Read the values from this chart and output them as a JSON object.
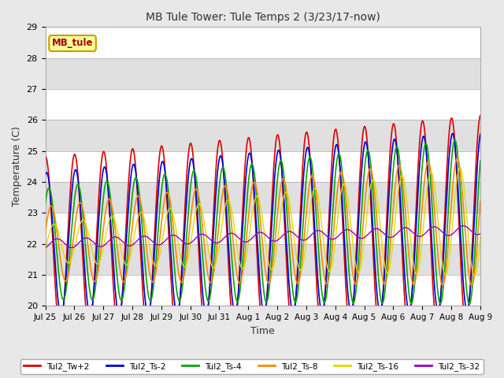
{
  "title": "MB Tule Tower: Tule Temps 2 (3/23/17-now)",
  "xlabel": "Time",
  "ylabel": "Temperature (C)",
  "ylim": [
    20.0,
    29.0
  ],
  "yticks": [
    20.0,
    21.0,
    22.0,
    23.0,
    24.0,
    25.0,
    26.0,
    27.0,
    28.0,
    29.0
  ],
  "xtick_labels": [
    "Jul 25",
    "Jul 26",
    "Jul 27",
    "Jul 28",
    "Jul 29",
    "Jul 30",
    "Jul 31",
    "Aug 1",
    "Aug 2",
    "Aug 3",
    "Aug 4",
    "Aug 5",
    "Aug 6",
    "Aug 7",
    "Aug 8",
    "Aug 9"
  ],
  "background_color": "#e8e8e8",
  "plot_bg_color": "#ffffff",
  "series": [
    {
      "label": "Tul2_Tw+2",
      "color": "#dd0000"
    },
    {
      "label": "Tul2_Ts-2",
      "color": "#0000dd"
    },
    {
      "label": "Tul2_Ts-4",
      "color": "#00aa00"
    },
    {
      "label": "Tul2_Ts-8",
      "color": "#ff8800"
    },
    {
      "label": "Tul2_Ts-16",
      "color": "#dddd00"
    },
    {
      "label": "Tul2_Ts-32",
      "color": "#9900cc"
    }
  ],
  "annotation_text": "MB_tule",
  "annotation_color": "#aa0000",
  "annotation_bg": "#ffff99",
  "annotation_edge": "#cc9900",
  "band_colors": [
    "#ffffff",
    "#e0e0e0"
  ]
}
